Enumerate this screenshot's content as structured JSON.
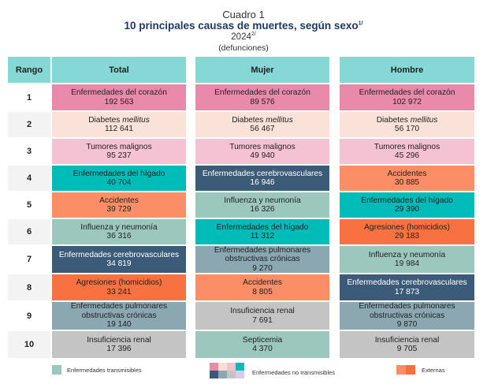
{
  "header": {
    "cuadro": "Cuadro 1",
    "title": "10 principales causas de muertes, según sexo",
    "title_note": "1/",
    "year": "2024",
    "year_note": "2/",
    "subtitle": "(defunciones)"
  },
  "columns": {
    "rank": "Rango",
    "total": "Total",
    "mujer": "Mujer",
    "hombre": "Hombre"
  },
  "colors": {
    "transmisibles": "#9ac8bd",
    "no_transmisibles": [
      "#e98aab",
      "#f9dfd6",
      "#f4c3d2",
      "#00bdb9",
      "#3a5a7a",
      "#8aa8b3",
      "#c4c4c4",
      "#dcc9ee"
    ],
    "externas": [
      "#fb8c64",
      "#f97040"
    ]
  },
  "rows": [
    {
      "rank": "1",
      "total": {
        "name": "Enfermedades del corazón",
        "value": "192 563",
        "color": "#e98aab"
      },
      "mujer": {
        "name": "Enfermedades del corazón",
        "value": "89 576",
        "color": "#e98aab"
      },
      "hombre": {
        "name": "Enfermedades del corazón",
        "value": "102 972",
        "color": "#e98aab"
      }
    },
    {
      "rank": "2",
      "total": {
        "name": "Diabetes",
        "name_italic": "mellitus",
        "value": "112 641",
        "color": "#fbe2d8"
      },
      "mujer": {
        "name": "Diabetes",
        "name_italic": "mellitus",
        "value": "56 467",
        "color": "#fbe2d8"
      },
      "hombre": {
        "name": "Diabetes",
        "name_italic": "mellitus",
        "value": "56 170",
        "color": "#fbe2d8"
      }
    },
    {
      "rank": "3",
      "total": {
        "name": "Tumores malignos",
        "value": "95 237",
        "color": "#f4c2d2"
      },
      "mujer": {
        "name": "Tumores malignos",
        "value": "49 940",
        "color": "#f4c2d2"
      },
      "hombre": {
        "name": "Tumores malignos",
        "value": "45 296",
        "color": "#f4c2d2"
      }
    },
    {
      "rank": "4",
      "total": {
        "name": "Enfermedades del hígado",
        "value": "40 704",
        "color": "#00bcb8"
      },
      "mujer": {
        "name": "Enfermedades cerebrovasculares",
        "value": "16 946",
        "color": "#3c5b78",
        "light": true
      },
      "hombre": {
        "name": "Accidentes",
        "value": "30 885",
        "color": "#fb8e66"
      }
    },
    {
      "rank": "5",
      "total": {
        "name": "Accidentes",
        "value": "39 729",
        "color": "#fb8e66"
      },
      "mujer": {
        "name": "Influenza y neumonía",
        "value": "16 326",
        "color": "#9bc7bc"
      },
      "hombre": {
        "name": "Enfermedades del hígado",
        "value": "29 390",
        "color": "#00bcb8"
      }
    },
    {
      "rank": "6",
      "total": {
        "name": "Influenza y neumonía",
        "value": "36 316",
        "color": "#9bc7bc"
      },
      "mujer": {
        "name": "Enfermedades del hígado",
        "value": "11 312",
        "color": "#00bcb8"
      },
      "hombre": {
        "name": "Agresiones (homicidios)",
        "value": "29 183",
        "color": "#f87140"
      }
    },
    {
      "rank": "7",
      "total": {
        "name": "Enfermedades cerebrovasculares",
        "value": "34 819",
        "color": "#3c5b78",
        "light": true
      },
      "mujer": {
        "name": "Enfermedades pulmonares obstructivas crónicas",
        "value": "9 270",
        "color": "#8aa7b2"
      },
      "hombre": {
        "name": "Influenza y neumonía",
        "value": "19 984",
        "color": "#9bc7bc"
      }
    },
    {
      "rank": "8",
      "total": {
        "name": "Agresiones (homicidios)",
        "value": "33 241",
        "color": "#f87140"
      },
      "mujer": {
        "name": "Accidentes",
        "value": "8 805",
        "color": "#fb8e66"
      },
      "hombre": {
        "name": "Enfermedades cerebrovasculares",
        "value": "17 873",
        "color": "#3c5b78",
        "light": true
      }
    },
    {
      "rank": "9",
      "total": {
        "name": "Enfermedades pulmonares obstructivas crónicas",
        "value": "19 140",
        "color": "#8aa7b2"
      },
      "mujer": {
        "name": "Insuficiencia renal",
        "value": "7 691",
        "color": "#c4c4c4"
      },
      "hombre": {
        "name": "Enfermedades pulmonares obstructivas crónicas",
        "value": "9 870",
        "color": "#8aa7b2"
      }
    },
    {
      "rank": "10",
      "total": {
        "name": "Insuficiencia renal",
        "value": "17 396",
        "color": "#c4c4c4"
      },
      "mujer": {
        "name": "Septicemia",
        "value": "4 370",
        "color": "#9bc7bc"
      },
      "hombre": {
        "name": "Insuficiencia renal",
        "value": "9 705",
        "color": "#c4c4c4"
      }
    }
  ],
  "legend": {
    "transmisibles": "Enfermedades transmisibles",
    "no_transmisibles": "Enfermedades no transmisibles",
    "externas": "Externas"
  }
}
